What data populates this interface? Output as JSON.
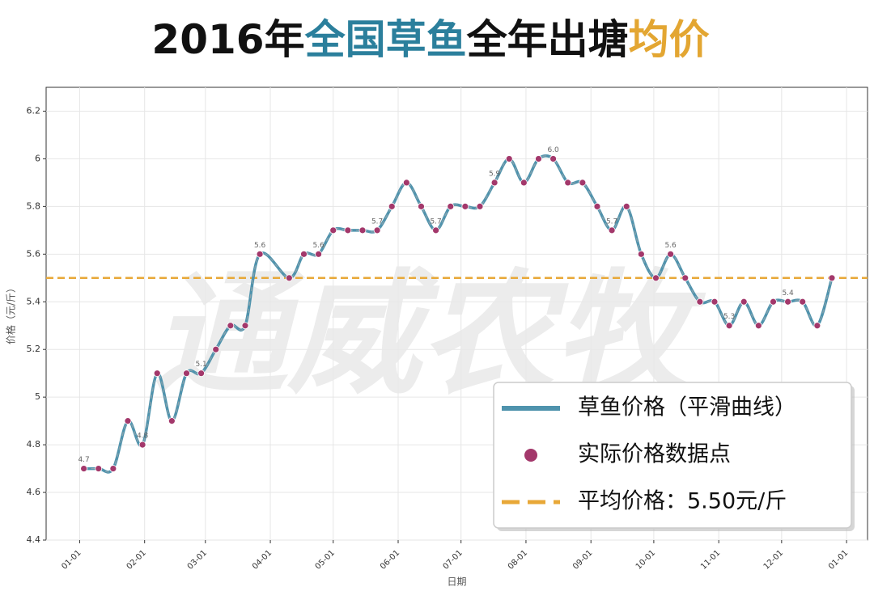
{
  "chart_data": {
    "type": "line",
    "title": {
      "parts": [
        {
          "text": "2016年",
          "color": "#111111"
        },
        {
          "text": "全国草鱼",
          "color": "#2b7f9c"
        },
        {
          "text": "全年出塘",
          "color": "#111111"
        },
        {
          "text": "均价",
          "color": "#e3a632"
        }
      ]
    },
    "watermark": "通威农牧",
    "x_label": "日期",
    "y_label": "价格（元/斤）",
    "x": [
      "2016-01-03",
      "2016-01-10",
      "2016-01-17",
      "2016-01-24",
      "2016-01-31",
      "2016-02-07",
      "2016-02-14",
      "2016-02-21",
      "2016-02-28",
      "2016-03-06",
      "2016-03-13",
      "2016-03-20",
      "2016-03-27",
      "2016-04-10",
      "2016-04-17",
      "2016-04-24",
      "2016-05-01",
      "2016-05-08",
      "2016-05-15",
      "2016-05-22",
      "2016-05-29",
      "2016-06-05",
      "2016-06-12",
      "2016-06-19",
      "2016-06-26",
      "2016-07-03",
      "2016-07-10",
      "2016-07-17",
      "2016-07-24",
      "2016-07-31",
      "2016-08-07",
      "2016-08-14",
      "2016-08-21",
      "2016-08-28",
      "2016-09-04",
      "2016-09-11",
      "2016-09-18",
      "2016-09-25",
      "2016-10-02",
      "2016-10-09",
      "2016-10-16",
      "2016-10-23",
      "2016-10-30",
      "2016-11-06",
      "2016-11-13",
      "2016-11-20",
      "2016-11-27",
      "2016-12-04",
      "2016-12-11",
      "2016-12-18",
      "2016-12-25"
    ],
    "values": [
      4.7,
      4.7,
      4.7,
      4.9,
      4.8,
      5.1,
      4.9,
      5.1,
      5.1,
      5.2,
      5.3,
      5.3,
      5.6,
      5.5,
      5.6,
      5.6,
      5.7,
      5.7,
      5.7,
      5.7,
      5.8,
      5.9,
      5.8,
      5.7,
      5.8,
      5.8,
      5.8,
      5.9,
      6.0,
      5.9,
      6.0,
      6.0,
      5.9,
      5.9,
      5.8,
      5.7,
      5.8,
      5.6,
      5.5,
      5.6,
      5.5,
      5.4,
      5.4,
      5.3,
      5.4,
      5.3,
      5.4,
      5.4,
      5.4,
      5.3,
      5.5
    ],
    "value_labels": [
      "4.7",
      null,
      null,
      null,
      "4.8",
      null,
      null,
      null,
      "5.1",
      null,
      null,
      null,
      "5.6",
      null,
      null,
      "5.6",
      null,
      null,
      null,
      "5.7",
      null,
      null,
      null,
      "5.7",
      null,
      null,
      null,
      "5.9",
      null,
      null,
      null,
      "6.0",
      null,
      null,
      null,
      "5.7",
      null,
      null,
      null,
      "5.6",
      null,
      null,
      null,
      "5.3",
      null,
      null,
      null,
      "5.4",
      null,
      null,
      null
    ],
    "line_color": "#4f93ad",
    "point_color": "#a3386b",
    "average": {
      "value": 5.5,
      "color": "#e8a838"
    },
    "xlim": [
      "2015-12-16",
      "2017-01-11"
    ],
    "xticks": [
      {
        "value": "2016-01-01",
        "label": "01-01"
      },
      {
        "value": "2016-02-01",
        "label": "02-01"
      },
      {
        "value": "2016-03-01",
        "label": "03-01"
      },
      {
        "value": "2016-04-01",
        "label": "04-01"
      },
      {
        "value": "2016-05-01",
        "label": "05-01"
      },
      {
        "value": "2016-06-01",
        "label": "06-01"
      },
      {
        "value": "2016-07-01",
        "label": "07-01"
      },
      {
        "value": "2016-08-01",
        "label": "08-01"
      },
      {
        "value": "2016-09-01",
        "label": "09-01"
      },
      {
        "value": "2016-10-01",
        "label": "10-01"
      },
      {
        "value": "2016-11-01",
        "label": "11-01"
      },
      {
        "value": "2016-12-01",
        "label": "12-01"
      },
      {
        "value": "2017-01-01",
        "label": "01-01"
      }
    ],
    "ylim": [
      4.4,
      6.3
    ],
    "yticks": [
      4.4,
      4.6,
      4.8,
      5.0,
      5.2,
      5.4,
      5.6,
      5.8,
      6.0,
      6.2
    ],
    "grid": true,
    "legend": {
      "position": "lower right",
      "entries": [
        {
          "label": "草鱼价格（平滑曲线）",
          "style": "line",
          "color": "#4f93ad"
        },
        {
          "label": "实际价格数据点",
          "style": "point",
          "color": "#a3386b"
        },
        {
          "label": "平均价格：5.50元/斤",
          "style": "dash",
          "color": "#e8a838"
        }
      ]
    }
  }
}
